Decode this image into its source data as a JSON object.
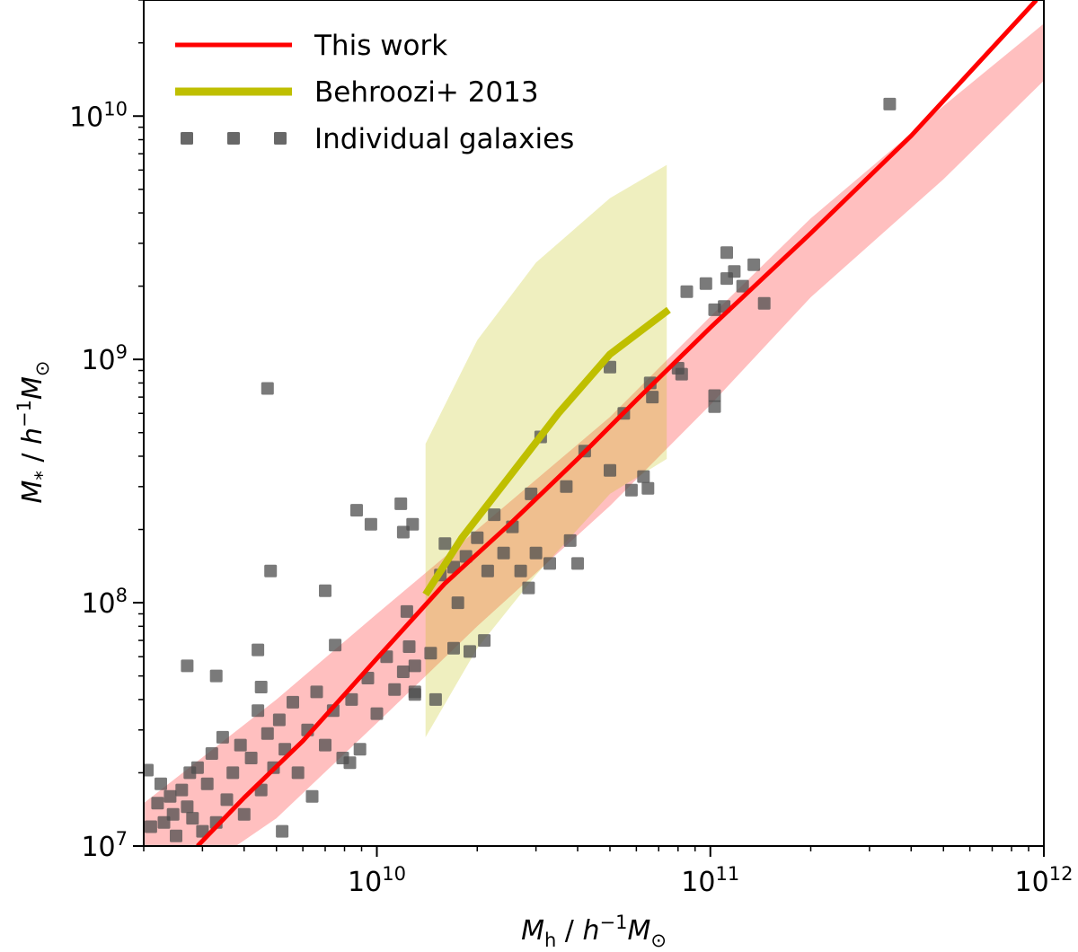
{
  "chart_data": {
    "type": "scatter",
    "xlabel": "M_h / h⁻¹M_⊙",
    "ylabel": "M_* / h⁻¹M_⊙",
    "xscale": "log",
    "yscale": "log",
    "xlim": [
      2000000000.0,
      1000000000000.0
    ],
    "ylim": [
      10000000.0,
      30000000000.0
    ],
    "grid": false,
    "legend_placement": "top-left",
    "x_ticks": [
      {
        "value": 10000000000.0,
        "label": "10^10"
      },
      {
        "value": 100000000000.0,
        "label": "10^11"
      },
      {
        "value": 1000000000000.0,
        "label": "10^12"
      }
    ],
    "y_ticks": [
      {
        "value": 10000000.0,
        "label": "10^7"
      },
      {
        "value": 100000000.0,
        "label": "10^8"
      },
      {
        "value": 1000000000.0,
        "label": "10^9"
      },
      {
        "value": 10000000000.0,
        "label": "10^10"
      }
    ],
    "legend": [
      {
        "label": "This work",
        "style": "line",
        "color": "#ff0000"
      },
      {
        "label": "Behroozi+ 2013",
        "style": "line",
        "color": "#bfbf00"
      },
      {
        "label": "Individual galaxies",
        "style": "marker",
        "color": "#4d4d4d"
      }
    ],
    "series": [
      {
        "name": "This work",
        "kind": "line",
        "color": "#ff0000",
        "x": [
          2900000000.0,
          4000000000.0,
          6000000000.0,
          10000000000.0,
          16000000000.0,
          25000000000.0,
          40000000000.0,
          60000000000.0,
          100000000000.0,
          200000000000.0,
          400000000000.0,
          950000000000.0
        ],
        "y": [
          10000000.0,
          15800000.0,
          27000000.0,
          59000000.0,
          120000000.0,
          210000000.0,
          390000000.0,
          680000000.0,
          1350000000.0,
          3300000000.0,
          8300000000.0,
          30000000000.0
        ],
        "band": {
          "color": "#ff0000",
          "opacity": 0.25,
          "x": [
            2000000000.0,
            5000000000.0,
            10000000000.0,
            20000000000.0,
            50000000000.0,
            100000000000.0,
            200000000000.0,
            500000000000.0,
            1000000000000.0
          ],
          "lower": [
            5500000.0,
            13000000.0,
            32000000.0,
            80000000.0,
            250000000.0,
            650000000.0,
            1800000000.0,
            5500000000.0,
            14000000000.0
          ],
          "upper": [
            15000000.0,
            40000000.0,
            90000000.0,
            200000000.0,
            580000000.0,
            1500000000.0,
            3800000000.0,
            11000000000.0,
            24000000000.0
          ]
        }
      },
      {
        "name": "Behroozi+ 2013",
        "kind": "line",
        "color": "#bfbf00",
        "x": [
          14000000000.0,
          18000000000.0,
          25000000000.0,
          35000000000.0,
          50000000000.0,
          75000000000.0
        ],
        "y": [
          108000000.0,
          185000000.0,
          330000000.0,
          600000000.0,
          1050000000.0,
          1600000000.0
        ],
        "band": {
          "color": "#bfbf00",
          "opacity": 0.25,
          "x": [
            14000000000.0,
            20000000000.0,
            30000000000.0,
            50000000000.0,
            74000000000.0
          ],
          "lower": [
            28000000.0,
            65000000.0,
            130000000.0,
            280000000.0,
            390000000.0
          ],
          "upper": [
            450000000.0,
            1200000000.0,
            2500000000.0,
            4600000000.0,
            6300000000.0
          ]
        }
      },
      {
        "name": "Individual galaxies",
        "kind": "scatter",
        "color": "#4d4d4d",
        "points": [
          [
            2050000000.0,
            20500000.0
          ],
          [
            2100000000.0,
            12000000.0
          ],
          [
            2200000000.0,
            15000000.0
          ],
          [
            2250000000.0,
            18000000.0
          ],
          [
            2300000000.0,
            12500000.0
          ],
          [
            2400000000.0,
            16000000.0
          ],
          [
            2450000000.0,
            13500000.0
          ],
          [
            2500000000.0,
            11000000.0
          ],
          [
            2600000000.0,
            17000000.0
          ],
          [
            2700000000.0,
            14500000.0
          ],
          [
            2750000000.0,
            20000000.0
          ],
          [
            2800000000.0,
            13000000.0
          ],
          [
            2900000000.0,
            21000000.0
          ],
          [
            3000000000.0,
            11500000.0
          ],
          [
            3100000000.0,
            18000000.0
          ],
          [
            3200000000.0,
            24000000.0
          ],
          [
            3300000000.0,
            12500000.0
          ],
          [
            3450000000.0,
            28000000.0
          ],
          [
            3550000000.0,
            15500000.0
          ],
          [
            3700000000.0,
            20000000.0
          ],
          [
            3900000000.0,
            26000000.0
          ],
          [
            4000000000.0,
            13500000.0
          ],
          [
            4200000000.0,
            23000000.0
          ],
          [
            4400000000.0,
            36000000.0
          ],
          [
            4500000000.0,
            17000000.0
          ],
          [
            4700000000.0,
            29000000.0
          ],
          [
            4900000000.0,
            21000000.0
          ],
          [
            5100000000.0,
            33000000.0
          ],
          [
            5300000000.0,
            25000000.0
          ],
          [
            5600000000.0,
            39000000.0
          ],
          [
            5800000000.0,
            20000000.0
          ],
          [
            6200000000.0,
            30000000.0
          ],
          [
            6600000000.0,
            43000000.0
          ],
          [
            7000000000.0,
            26000000.0
          ],
          [
            7400000000.0,
            36000000.0
          ],
          [
            7900000000.0,
            23000000.0
          ],
          [
            8400000000.0,
            40000000.0
          ],
          [
            8900000000.0,
            25000000.0
          ],
          [
            9400000000.0,
            49000000.0
          ],
          [
            10000000000.0,
            35000000.0
          ],
          [
            10700000000.0,
            60000000.0
          ],
          [
            11300000000.0,
            44000000.0
          ],
          [
            12000000000.0,
            52000000.0
          ],
          [
            12500000000.0,
            66000000.0
          ],
          [
            13000000000.0,
            42000000.0
          ],
          [
            2700000000.0,
            55000000.0
          ],
          [
            3300000000.0,
            50000000.0
          ],
          [
            4400000000.0,
            64000000.0
          ],
          [
            4500000000.0,
            45000000.0
          ],
          [
            4800000000.0,
            135000000.0
          ],
          [
            4700000000.0,
            760000000.0
          ],
          [
            7000000000.0,
            112000000.0
          ],
          [
            7500000000.0,
            67000000.0
          ],
          [
            8700000000.0,
            240000000.0
          ],
          [
            9600000000.0,
            210000000.0
          ],
          [
            11800000000.0,
            255000000.0
          ],
          [
            12000000000.0,
            195000000.0
          ],
          [
            12800000000.0,
            210000000.0
          ],
          [
            12300000000.0,
            92000000.0
          ],
          [
            5200000000.0,
            11500000.0
          ],
          [
            6400000000.0,
            16000000.0
          ],
          [
            8300000000.0,
            22000000.0
          ],
          [
            13000000000.0,
            55000000.0
          ],
          [
            14500000000.0,
            62000000.0
          ],
          [
            15000000000.0,
            40000000.0
          ],
          [
            13000000000.0,
            43000000.0
          ],
          [
            17000000000.0,
            65000000.0
          ],
          [
            19000000000.0,
            63000000.0
          ],
          [
            21000000000.0,
            70000000.0
          ],
          [
            15500000000.0,
            130000000.0
          ],
          [
            16000000000.0,
            175000000.0
          ],
          [
            17000000000.0,
            140000000.0
          ],
          [
            17500000000.0,
            100000000.0
          ],
          [
            18500000000.0,
            155000000.0
          ],
          [
            20000000000.0,
            185000000.0
          ],
          [
            21500000000.0,
            135000000.0
          ],
          [
            22500000000.0,
            230000000.0
          ],
          [
            24000000000.0,
            160000000.0
          ],
          [
            25500000000.0,
            205000000.0
          ],
          [
            27000000000.0,
            135000000.0
          ],
          [
            28500000000.0,
            115000000.0
          ],
          [
            30000000000.0,
            160000000.0
          ],
          [
            33000000000.0,
            145000000.0
          ],
          [
            38000000000.0,
            180000000.0
          ],
          [
            40000000000.0,
            145000000.0
          ],
          [
            29000000000.0,
            280000000.0
          ],
          [
            31000000000.0,
            480000000.0
          ],
          [
            37000000000.0,
            300000000.0
          ],
          [
            42000000000.0,
            420000000.0
          ],
          [
            50000000000.0,
            350000000.0
          ],
          [
            55000000000.0,
            600000000.0
          ],
          [
            58000000000.0,
            290000000.0
          ],
          [
            63000000000.0,
            330000000.0
          ],
          [
            66000000000.0,
            800000000.0
          ],
          [
            65000000000.0,
            295000000.0
          ],
          [
            50000000000.0,
            930000000.0
          ],
          [
            67000000000.0,
            700000000.0
          ],
          [
            80000000000.0,
            920000000.0
          ],
          [
            82000000000.0,
            870000000.0
          ],
          [
            85000000000.0,
            1900000000.0
          ],
          [
            97000000000.0,
            2050000000.0
          ],
          [
            103000000000.0,
            1600000000.0
          ],
          [
            110000000000.0,
            1650000000.0
          ],
          [
            112000000000.0,
            2150000000.0
          ],
          [
            118000000000.0,
            2300000000.0
          ],
          [
            125000000000.0,
            2000000000.0
          ],
          [
            135000000000.0,
            2450000000.0
          ],
          [
            145000000000.0,
            1700000000.0
          ],
          [
            112000000000.0,
            2750000000.0
          ],
          [
            103000000000.0,
            710000000.0
          ],
          [
            103000000000.0,
            640000000.0
          ],
          [
            345000000000.0,
            11200000000.0
          ]
        ]
      }
    ]
  }
}
